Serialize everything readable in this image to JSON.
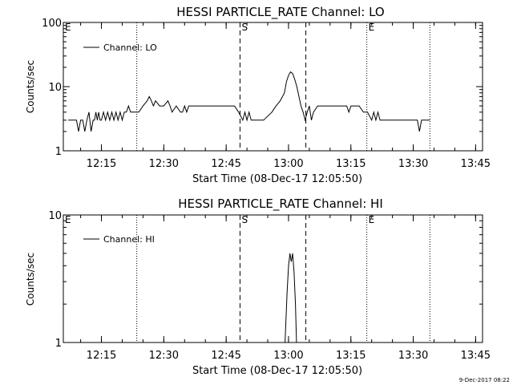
{
  "chart_data": [
    {
      "type": "line",
      "title": "HESSI PARTICLE_RATE Channel: LO",
      "xlabel": "Start Time (08-Dec-17 12:05:50)",
      "ylabel": "Counts/sec",
      "y_scale": "log",
      "xlim": [
        "12:05:50",
        "13:46:40"
      ],
      "ylim": [
        1,
        100
      ],
      "x_ticks": [
        "12:15",
        "12:30",
        "12:45",
        "13:00",
        "13:15",
        "13:30",
        "13:45"
      ],
      "y_ticks": [
        "1",
        "10",
        "100"
      ],
      "legend": {
        "entries": [
          "Channel: LO"
        ],
        "placement": "top-left"
      },
      "markers": [
        {
          "time": "12:05:50",
          "label": "E",
          "style": "dotted"
        },
        {
          "time": "12:23:30",
          "label": "",
          "style": "dotted"
        },
        {
          "time": "12:48:20",
          "label": "S",
          "style": "dashed"
        },
        {
          "time": "13:04:10",
          "label": "",
          "style": "dashed"
        },
        {
          "time": "13:18:50",
          "label": "E",
          "style": "dotted"
        },
        {
          "time": "13:34:00",
          "label": "",
          "style": "dotted"
        }
      ],
      "series": [
        {
          "x": [
            "12:07:00",
            "12:09:00",
            "12:09:30",
            "12:10:00",
            "12:10:30",
            "12:11:00",
            "12:11:30",
            "12:12:00",
            "12:12:30",
            "12:13:00",
            "12:13:20",
            "12:13:40",
            "12:14:00",
            "12:14:20",
            "12:14:40",
            "12:15:00",
            "12:15:30",
            "12:16:00",
            "12:16:30",
            "12:17:00",
            "12:17:30",
            "12:18:00",
            "12:18:30",
            "12:19:00",
            "12:19:30",
            "12:20:00",
            "12:20:30",
            "12:21:00",
            "12:21:30",
            "12:22:00",
            "12:23:00",
            "12:24:00",
            "12:25:00",
            "12:26:00",
            "12:26:30",
            "12:27:00",
            "12:27:30",
            "12:28:00",
            "12:29:00",
            "12:30:00",
            "12:31:00",
            "12:31:30",
            "12:32:00",
            "12:33:00",
            "12:34:00",
            "12:34:30",
            "12:35:00",
            "12:35:30",
            "12:36:00",
            "12:38:00",
            "12:40:00",
            "12:42:00",
            "12:44:00",
            "12:46:00",
            "12:47:00",
            "12:48:00",
            "12:49:00",
            "12:49:30",
            "12:50:00",
            "12:50:30",
            "12:51:00",
            "12:54:00",
            "12:56:00",
            "12:57:00",
            "12:58:00",
            "12:59:00",
            "12:59:30",
            "13:00:00",
            "13:00:30",
            "13:01:00",
            "13:01:30",
            "13:02:00",
            "13:03:00",
            "13:03:30",
            "13:04:00",
            "13:04:30",
            "13:05:00",
            "13:05:30",
            "13:06:00",
            "13:07:00",
            "13:08:00",
            "13:09:00",
            "13:10:00",
            "13:11:00",
            "13:12:00",
            "13:13:00",
            "13:14:00",
            "13:14:30",
            "13:15:00",
            "13:16:00",
            "13:17:00",
            "13:18:00",
            "13:19:00",
            "13:20:00",
            "13:20:30",
            "13:21:00",
            "13:21:30",
            "13:22:00",
            "13:22:30",
            "13:23:00",
            "13:24:00",
            "13:26:00",
            "13:27:00",
            "13:28:00",
            "13:29:00",
            "13:31:00",
            "13:31:30",
            "13:32:00",
            "13:33:00",
            "13:34:00"
          ],
          "y": [
            3,
            3,
            2,
            3,
            3,
            2,
            3,
            4,
            2,
            3,
            3,
            4,
            3,
            4,
            3,
            3,
            4,
            3,
            4,
            3,
            4,
            3,
            4,
            3,
            4,
            3,
            4,
            4,
            5,
            4,
            4,
            4,
            5,
            6,
            7,
            6,
            5,
            6,
            5,
            5,
            6,
            5,
            4,
            5,
            4,
            4,
            5,
            4,
            5,
            5,
            5,
            5,
            5,
            5,
            5,
            4,
            3,
            4,
            3,
            4,
            3,
            3,
            4,
            5,
            6,
            8,
            12,
            15,
            17,
            16,
            13,
            10,
            5,
            4,
            3,
            4,
            5,
            3,
            4,
            5,
            5,
            5,
            5,
            5,
            5,
            5,
            5,
            4,
            5,
            5,
            5,
            4,
            4,
            3,
            4,
            3,
            4,
            3,
            3,
            3,
            3,
            3,
            3,
            3,
            3,
            3,
            2,
            3,
            3,
            3
          ]
        }
      ]
    },
    {
      "type": "line",
      "title": "HESSI PARTICLE_RATE Channel: HI",
      "xlabel": "Start Time (08-Dec-17 12:05:50)",
      "ylabel": "Counts/sec",
      "y_scale": "log",
      "xlim": [
        "12:05:50",
        "13:46:40"
      ],
      "ylim": [
        1,
        10
      ],
      "x_ticks": [
        "12:15",
        "12:30",
        "12:45",
        "13:00",
        "13:15",
        "13:30",
        "13:45"
      ],
      "y_ticks": [
        "1",
        "10"
      ],
      "legend": {
        "entries": [
          "Channel: HI"
        ],
        "placement": "top-left"
      },
      "markers": [
        {
          "time": "12:05:50",
          "label": "E",
          "style": "dotted"
        },
        {
          "time": "12:23:30",
          "label": "",
          "style": "dotted"
        },
        {
          "time": "12:48:20",
          "label": "S",
          "style": "dashed"
        },
        {
          "time": "13:04:10",
          "label": "",
          "style": "dashed"
        },
        {
          "time": "13:18:50",
          "label": "E",
          "style": "dotted"
        },
        {
          "time": "13:34:00",
          "label": "",
          "style": "dotted"
        }
      ],
      "series": [
        {
          "x": [
            "12:59:10",
            "12:59:40",
            "13:00:00",
            "13:00:20",
            "13:00:40",
            "13:01:00",
            "13:01:20",
            "13:01:40",
            "13:01:55"
          ],
          "y": [
            1,
            2.5,
            4,
            5,
            4.3,
            5,
            3.5,
            2,
            1
          ]
        }
      ]
    }
  ],
  "footer": {
    "timestamp": "9-Dec-2017 08:22"
  }
}
